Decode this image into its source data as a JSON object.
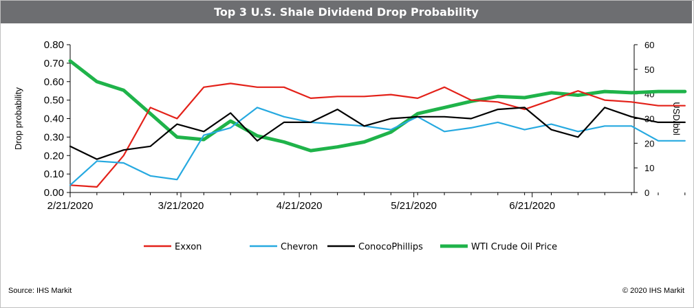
{
  "chart_data": {
    "type": "line",
    "title": "Top 3 U.S. Shale Dividend Drop Probability",
    "ylabel": "Drop probability",
    "y2label": "USD/bbl",
    "ylim": [
      0,
      0.8
    ],
    "y2lim": [
      0,
      60
    ],
    "y_ticks": [
      "0.00",
      "0.10",
      "0.20",
      "0.30",
      "0.40",
      "0.50",
      "0.60",
      "0.70",
      "0.80"
    ],
    "y2_ticks": [
      "0",
      "10",
      "20",
      "30",
      "40",
      "50",
      "60"
    ],
    "x_ticks": [
      "2/21/2020",
      "3/21/2020",
      "4/21/2020",
      "5/21/2020",
      "6/21/2020"
    ],
    "x": [
      "2/21/2020",
      "2/28/2020",
      "3/6/2020",
      "3/13/2020",
      "3/20/2020",
      "3/27/2020",
      "4/3/2020",
      "4/10/2020",
      "4/17/2020",
      "4/24/2020",
      "5/1/2020",
      "5/8/2020",
      "5/15/2020",
      "5/22/2020",
      "5/29/2020",
      "6/5/2020",
      "6/12/2020",
      "6/19/2020",
      "6/26/2020",
      "7/3/2020",
      "7/10/2020",
      "7/17/2020",
      "7/24/2020",
      "7/31/2020"
    ],
    "series": [
      {
        "name": "Exxon",
        "axis": "left",
        "color": "#e32119",
        "values": [
          0.04,
          0.03,
          0.2,
          0.46,
          0.4,
          0.57,
          0.59,
          0.57,
          0.57,
          0.51,
          0.52,
          0.52,
          0.53,
          0.51,
          0.57,
          0.5,
          0.49,
          0.45,
          0.5,
          0.55,
          0.5,
          0.49,
          0.47,
          0.47
        ]
      },
      {
        "name": "Chevron",
        "axis": "left",
        "color": "#26a9e0",
        "values": [
          0.04,
          0.17,
          0.16,
          0.09,
          0.07,
          0.31,
          0.35,
          0.46,
          0.41,
          0.38,
          0.37,
          0.36,
          0.34,
          0.41,
          0.33,
          0.35,
          0.38,
          0.34,
          0.37,
          0.33,
          0.36,
          0.36,
          0.28,
          0.28
        ]
      },
      {
        "name": "ConocoPhillips",
        "axis": "left",
        "color": "#000000",
        "values": [
          0.25,
          0.18,
          0.23,
          0.25,
          0.37,
          0.33,
          0.43,
          0.28,
          0.38,
          0.38,
          0.45,
          0.36,
          0.4,
          0.41,
          0.41,
          0.4,
          0.45,
          0.46,
          0.34,
          0.3,
          0.46,
          0.41,
          0.38,
          0.38
        ]
      },
      {
        "name": "WTI Crude Oil Price",
        "axis": "right",
        "color": "#1fb34a",
        "values": [
          53.4,
          45.0,
          41.5,
          32.0,
          22.5,
          21.5,
          29.0,
          23.0,
          20.5,
          17.0,
          18.5,
          20.5,
          24.5,
          32.0,
          34.5,
          37.0,
          39.0,
          38.5,
          40.5,
          39.5,
          41.0,
          40.5,
          41.0,
          41.0
        ]
      }
    ],
    "legend_position": "bottom",
    "grid": false
  },
  "footer": {
    "source": "Source: IHS Markit",
    "copyright": "© 2020 IHS Markit"
  }
}
